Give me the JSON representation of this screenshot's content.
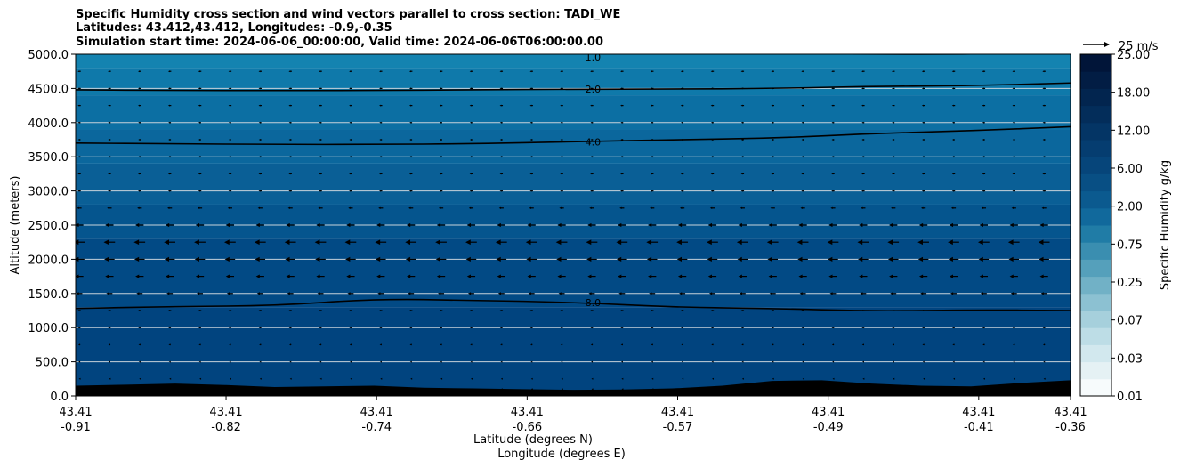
{
  "chart_data": {
    "type": "heatmap",
    "title_lines": [
      "Specific Humidity cross section and wind vectors parallel to cross section: TADI_WE",
      "Latitudes: 43.412,43.412, Longitudes: -0.9,-0.35",
      "Simulation start time: 2024-06-06_00:00:00, Valid time: 2024-06-06T06:00:00.00"
    ],
    "ylabel": "Altitude (meters)",
    "xlabel_lines": [
      "Latitude (degrees N)",
      "Longitude (degrees E)"
    ],
    "ylim": [
      0,
      5000
    ],
    "y_ticks": [
      "0.0",
      "500.0",
      "1000.0",
      "1500.0",
      "2000.0",
      "2500.0",
      "3000.0",
      "3500.0",
      "4000.0",
      "4500.0",
      "5000.0"
    ],
    "x_tick_labels": [
      [
        "43.41",
        "-0.91"
      ],
      [
        "43.41",
        "-0.82"
      ],
      [
        "43.41",
        "-0.74"
      ],
      [
        "43.41",
        "-0.66"
      ],
      [
        "43.41",
        "-0.57"
      ],
      [
        "43.41",
        "-0.49"
      ],
      [
        "43.41",
        "-0.41"
      ],
      [
        "43.41",
        "-0.36"
      ]
    ],
    "grid": "horizontal",
    "colorbar": {
      "label": "Specific Humidity g/kg",
      "tick_labels": [
        "0.01",
        "0.03",
        "0.07",
        "0.25",
        "0.75",
        "2.00",
        "6.00",
        "12.00",
        "18.00",
        "25.00"
      ],
      "colors": [
        "#f7fbfc",
        "#e5f1f4",
        "#d2e8ee",
        "#bddde6",
        "#a6d0dc",
        "#8cc1d2",
        "#71b1c6",
        "#55a0bb",
        "#3a8eb0",
        "#207ca6",
        "#11699c",
        "#0b5a8f",
        "#084f84",
        "#06457a",
        "#053d70",
        "#043565",
        "#032d5a",
        "#02254f",
        "#021d44",
        "#011539"
      ]
    },
    "wind_reference": {
      "label": "25 m/s",
      "speed": 25
    },
    "contours": [
      {
        "label": "1.0",
        "x": [
          0.0,
          0.1,
          0.2,
          0.3,
          0.4,
          0.5,
          0.6,
          0.7,
          0.8,
          0.9,
          1.0
        ],
        "y": [
          5010,
          5010,
          5010,
          5010,
          5010,
          5010,
          5010,
          5010,
          5000,
          5000,
          5030
        ]
      },
      {
        "label": "2.0",
        "x": [
          0.0,
          0.1,
          0.2,
          0.3,
          0.4,
          0.5,
          0.6,
          0.7,
          0.8,
          0.9,
          1.0
        ],
        "y": [
          4480,
          4470,
          4470,
          4470,
          4480,
          4490,
          4490,
          4500,
          4530,
          4540,
          4580
        ]
      },
      {
        "label": "4.0",
        "x": [
          0.0,
          0.1,
          0.2,
          0.3,
          0.4,
          0.5,
          0.6,
          0.7,
          0.8,
          0.9,
          1.0
        ],
        "y": [
          3700,
          3690,
          3680,
          3680,
          3690,
          3720,
          3750,
          3770,
          3840,
          3880,
          3940
        ]
      },
      {
        "label": "8.0",
        "x": [
          0.0,
          0.1,
          0.2,
          0.3,
          0.4,
          0.5,
          0.6,
          0.7,
          0.8,
          0.9,
          1.0
        ],
        "y": [
          1280,
          1310,
          1320,
          1420,
          1400,
          1370,
          1300,
          1280,
          1240,
          1260,
          1250
        ]
      }
    ],
    "terrain": {
      "x": [
        0.0,
        0.05,
        0.1,
        0.15,
        0.2,
        0.25,
        0.3,
        0.35,
        0.4,
        0.45,
        0.5,
        0.55,
        0.6,
        0.65,
        0.7,
        0.75,
        0.8,
        0.85,
        0.9,
        0.95,
        1.0
      ],
      "y": [
        150,
        165,
        180,
        160,
        130,
        140,
        150,
        120,
        110,
        100,
        90,
        95,
        110,
        150,
        220,
        230,
        180,
        150,
        140,
        190,
        230
      ]
    },
    "wind_profile": {
      "levels_m": [
        100,
        250,
        500,
        750,
        1000,
        1250,
        1500,
        1750,
        2000,
        2250,
        2500,
        2750,
        3000,
        3250,
        3500,
        3750,
        4000,
        4250,
        4500,
        4750
      ],
      "u_ms": [
        -0.5,
        -0.8,
        -1.5,
        -2.0,
        -2.5,
        -3.0,
        -6.0,
        -8.0,
        -10.0,
        -11.0,
        -8.0,
        -4.5,
        -3.0,
        -3.0,
        -2.5,
        -2.5,
        -2.5,
        -3.0,
        -3.0,
        -3.0
      ]
    }
  }
}
